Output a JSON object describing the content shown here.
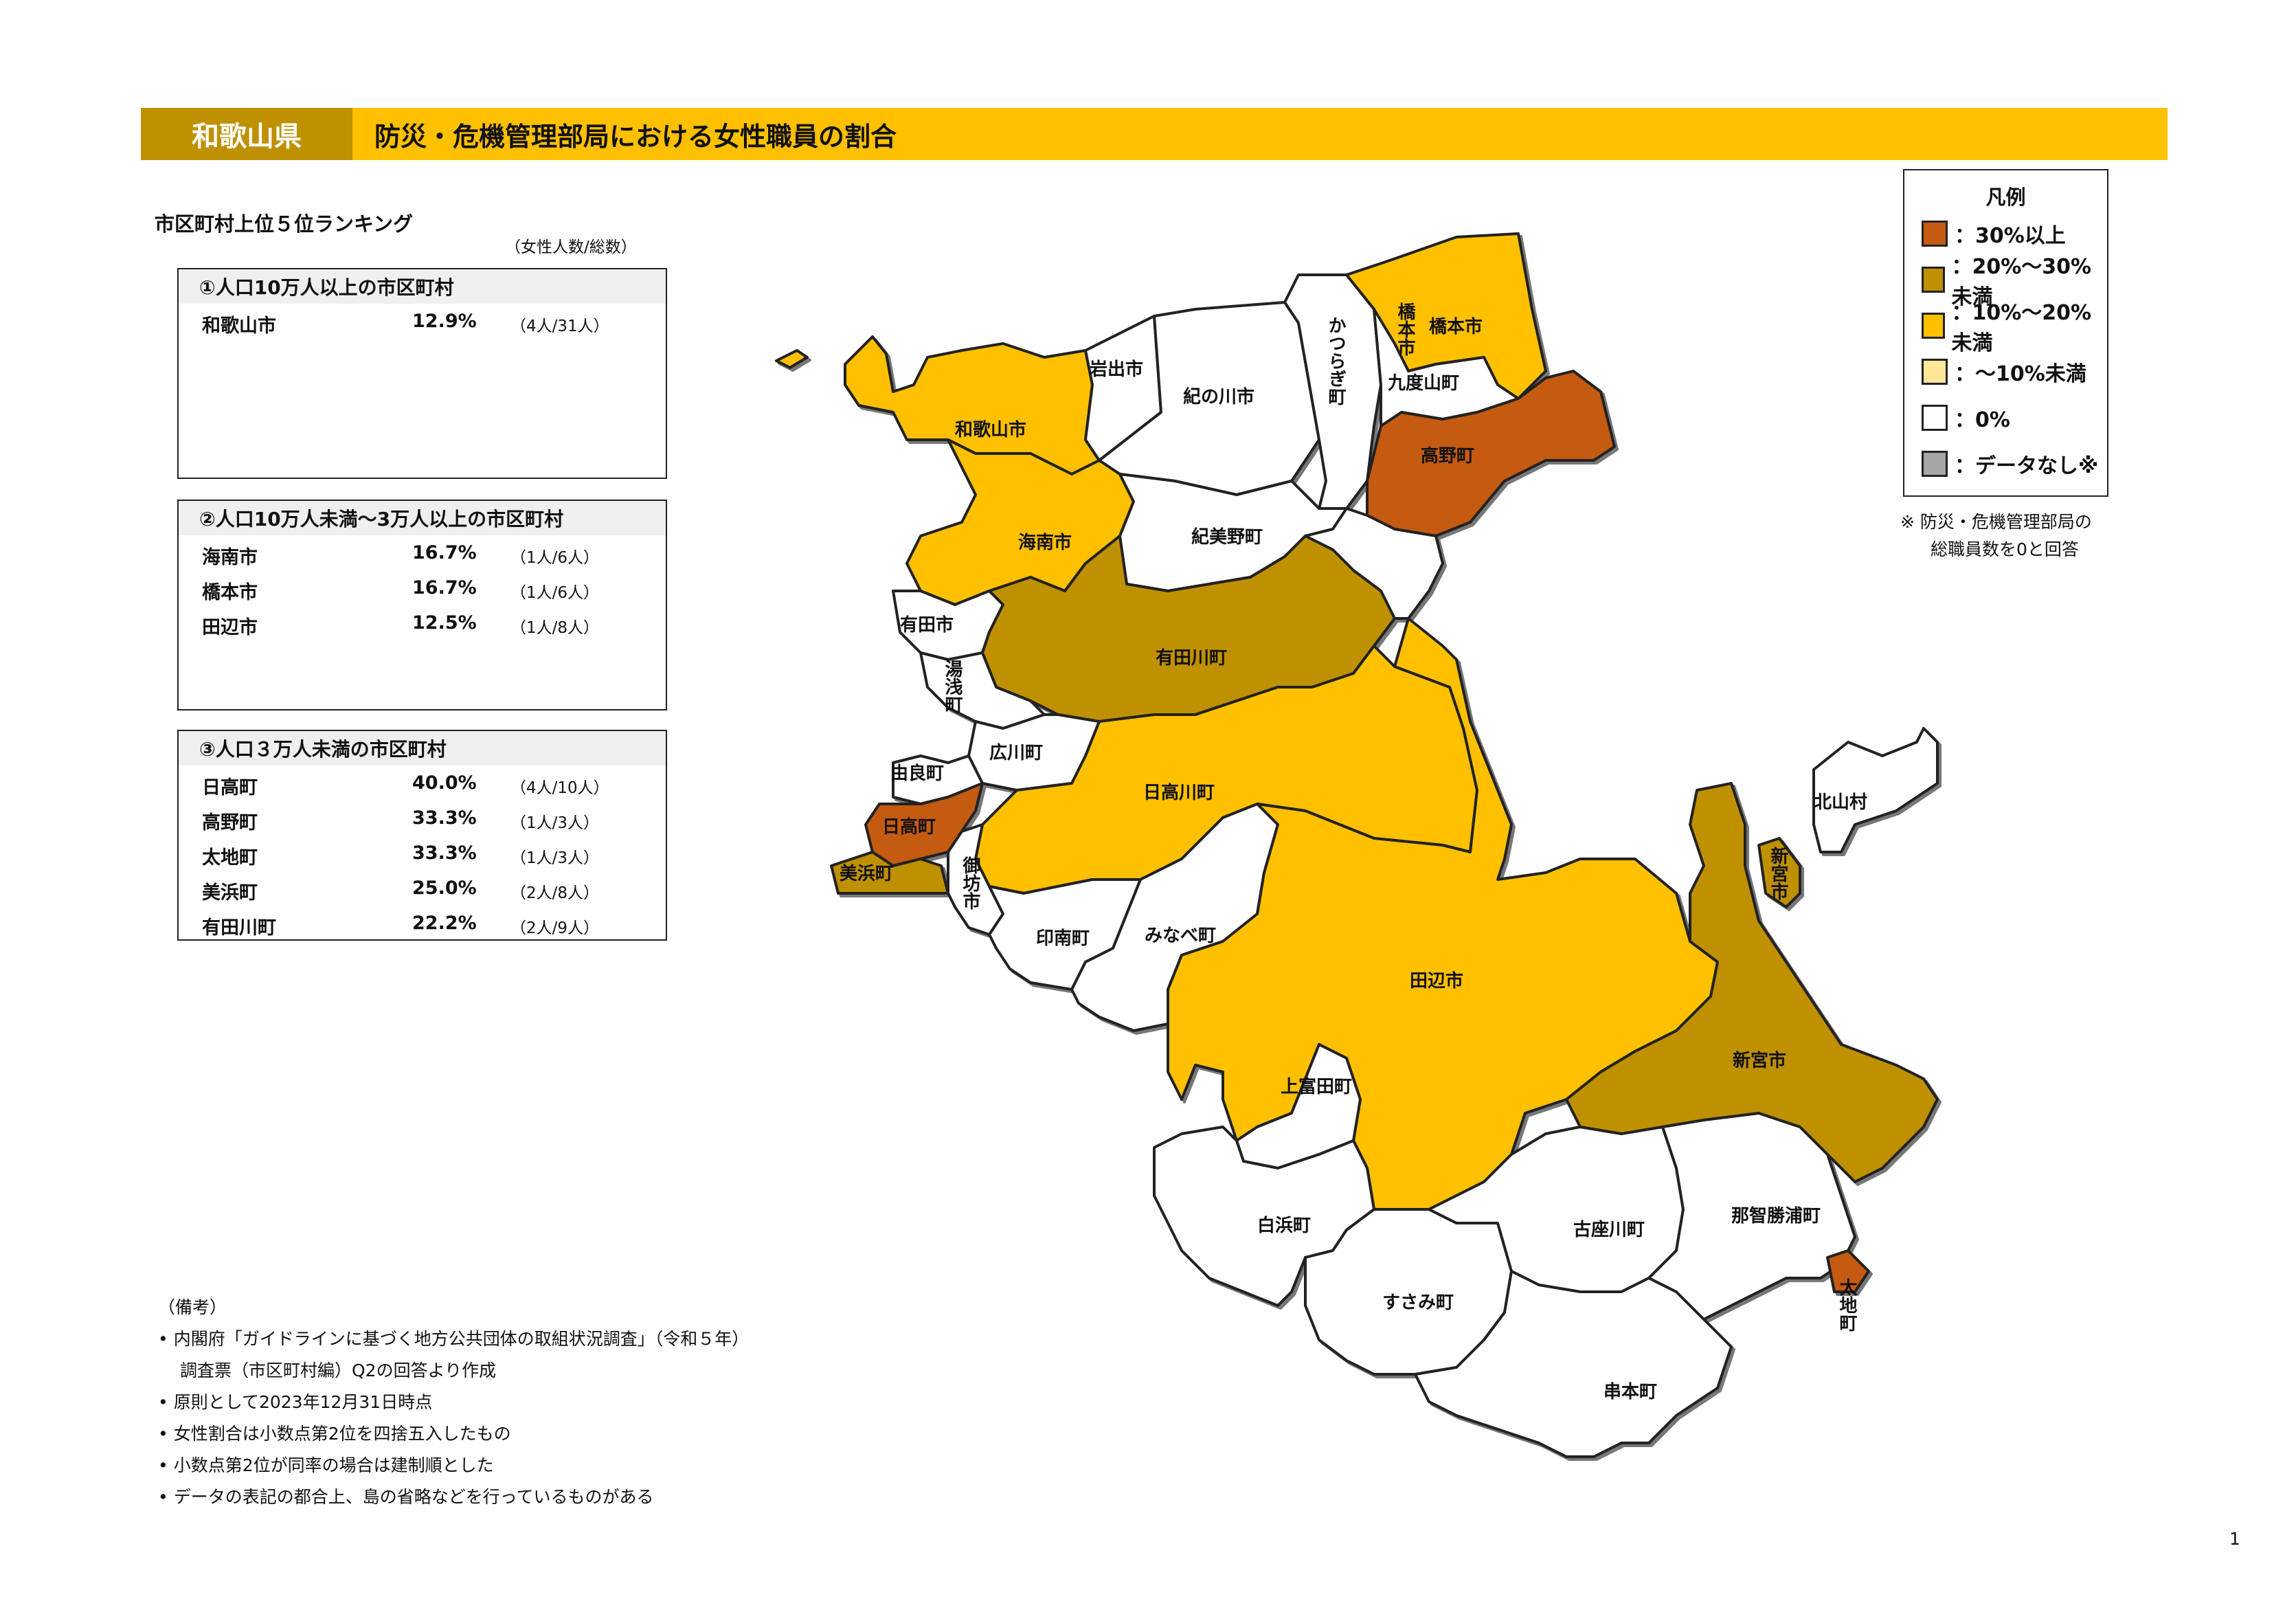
{
  "header": {
    "prefecture": "和歌山県",
    "title": "防災・危機管理部局における女性職員の割合"
  },
  "ranking": {
    "title": "市区町村上位５位ランキング",
    "unit_note": "（女性人数/総数）",
    "groups": [
      {
        "heading": "①人口10万人以上の市区町村",
        "rows": [
          {
            "name": "和歌山市",
            "pct": "12.9%",
            "count": "（4人/31人）"
          }
        ]
      },
      {
        "heading": "②人口10万人未満～3万人以上の市区町村",
        "rows": [
          {
            "name": "海南市",
            "pct": "16.7%",
            "count": "（1人/6人）"
          },
          {
            "name": "橋本市",
            "pct": "16.7%",
            "count": "（1人/6人）"
          },
          {
            "name": "田辺市",
            "pct": "12.5%",
            "count": "（1人/8人）"
          }
        ]
      },
      {
        "heading": "③人口３万人未満の市区町村",
        "rows": [
          {
            "name": "日高町",
            "pct": "40.0%",
            "count": "（4人/10人）"
          },
          {
            "name": "高野町",
            "pct": "33.3%",
            "count": "（1人/3人）"
          },
          {
            "name": "太地町",
            "pct": "33.3%",
            "count": "（1人/3人）"
          },
          {
            "name": "美浜町",
            "pct": "25.0%",
            "count": "（2人/8人）"
          },
          {
            "name": "有田川町",
            "pct": "22.2%",
            "count": "（2人/9人）"
          }
        ]
      }
    ]
  },
  "legend": {
    "title": "凡例",
    "items": [
      {
        "label": "：30%以上",
        "color": "#c55a11"
      },
      {
        "label": "：20%～30%未満",
        "color": "#bf9000"
      },
      {
        "label": "：10%～20%未満",
        "color": "#ffc000"
      },
      {
        "label": "：～10%未満",
        "color": "#ffe699"
      },
      {
        "label": "：0%",
        "color": "#ffffff"
      },
      {
        "label": "：データなし※",
        "color": "#a6a6a6"
      }
    ],
    "note_line1": "※ 防災・危機管理部局の",
    "note_line2": "総職員数を0と回答"
  },
  "notes": {
    "heading": "（備考）",
    "lines": [
      "• 内閣府「ガイドラインに基づく地方公共団体の取組状況調査」（令和５年）",
      "調査票（市区町村編）Q2の回答より作成",
      "• 原則として2023年12月31日時点",
      "• 女性割合は小数点第2位を四捨五入したもの",
      "• 小数点第2位が同率の場合は建制順とした",
      "• データの表記の都合上、島の省略などを行っているものがある"
    ]
  },
  "map": {
    "municipalities": [
      {
        "name": "和歌山市",
        "category": "10-20"
      },
      {
        "name": "岩出市",
        "category": "0"
      },
      {
        "name": "紀の川市",
        "category": "0"
      },
      {
        "name": "かつらぎ町",
        "category": "0"
      },
      {
        "name": "橋本市",
        "category": "10-20"
      },
      {
        "name": "九度山町",
        "category": "0"
      },
      {
        "name": "高野町",
        "category": "30+"
      },
      {
        "name": "海南市",
        "category": "10-20"
      },
      {
        "name": "紀美野町",
        "category": "0"
      },
      {
        "name": "有田市",
        "category": "0"
      },
      {
        "name": "有田川町",
        "category": "20-30"
      },
      {
        "name": "湯浅町",
        "category": "0"
      },
      {
        "name": "広川町",
        "category": "0"
      },
      {
        "name": "由良町",
        "category": "0"
      },
      {
        "name": "日高町",
        "category": "30+"
      },
      {
        "name": "美浜町",
        "category": "20-30"
      },
      {
        "name": "御坊市",
        "category": "0"
      },
      {
        "name": "日高川町",
        "category": "10-20"
      },
      {
        "name": "印南町",
        "category": "0"
      },
      {
        "name": "みなべ町",
        "category": "0"
      },
      {
        "name": "田辺市",
        "category": "10-20"
      },
      {
        "name": "上富田町",
        "category": "0"
      },
      {
        "name": "白浜町",
        "category": "0"
      },
      {
        "name": "すさみ町",
        "category": "0"
      },
      {
        "name": "古座川町",
        "category": "0"
      },
      {
        "name": "串本町",
        "category": "0"
      },
      {
        "name": "那智勝浦町",
        "category": "0"
      },
      {
        "name": "太地町",
        "category": "30+"
      },
      {
        "name": "新宮市",
        "category": "20-30"
      },
      {
        "name": "北山村",
        "category": "0"
      }
    ],
    "label_text": {
      "wakayama": "和歌山市",
      "iwade": "岩出市",
      "kinokawa": "紀の川市",
      "katsuragi": "かつらぎ町",
      "hashimoto_small": "橋本市",
      "hashimoto": "橋本市",
      "kudoyama": "九度山町",
      "koya": "高野町",
      "kainan": "海南市",
      "kimino": "紀美野町",
      "arida": "有田市",
      "aridagawa": "有田川町",
      "yuasa": "湯浅町",
      "hirogawa": "広川町",
      "yura": "由良町",
      "hidaka": "日高町",
      "mihama": "美浜町",
      "gobo": "御坊市",
      "hidakagawa": "日高川町",
      "inami": "印南町",
      "minabe": "みなべ町",
      "tanabe": "田辺市",
      "kamitonda": "上富田町",
      "shirahama": "白浜町",
      "susami": "すさみ町",
      "kozagawa": "古座川町",
      "kushimoto": "串本町",
      "nachikatsuura": "那智勝浦町",
      "taiji": "太地町",
      "shingu": "新宮市",
      "shingu_small": "新宮市",
      "kitayama": "北山村"
    }
  },
  "page_number": "1"
}
